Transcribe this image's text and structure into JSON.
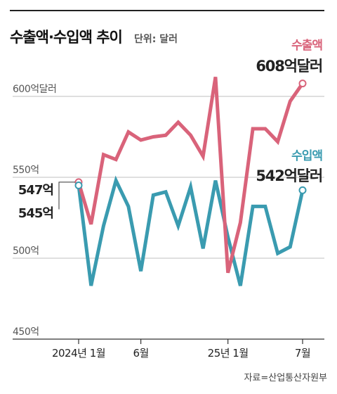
{
  "title": "수출액·수입액 추이",
  "unit": "단위: 달러",
  "source": "자료=산업통산자원부",
  "colors": {
    "exports": "#d9637a",
    "imports": "#3a9bb0",
    "grid": "#bfbfbf",
    "axis": "#333333",
    "text": "#222222"
  },
  "chart_data": {
    "type": "line",
    "title": "수출액·수입액 추이",
    "y_unit": "억달러",
    "ylim": [
      450,
      600
    ],
    "yticks": [
      {
        "value": 600,
        "label": "600억달러"
      },
      {
        "value": 550,
        "label": "550억"
      },
      {
        "value": 500,
        "label": "500억"
      },
      {
        "value": 450,
        "label": "450억"
      }
    ],
    "x": [
      "2024-01",
      "2024-02",
      "2024-03",
      "2024-04",
      "2024-05",
      "2024-06",
      "2024-07",
      "2024-08",
      "2024-09",
      "2024-10",
      "2024-11",
      "2024-12",
      "2025-01",
      "2025-02",
      "2025-03",
      "2025-04",
      "2025-05",
      "2025-06",
      "2025-07"
    ],
    "xtick_labels": [
      {
        "index": 0,
        "label": "2024년 1월"
      },
      {
        "index": 5,
        "label": "6월"
      },
      {
        "index": 12,
        "label": "25년 1월"
      },
      {
        "index": 18,
        "label": "7월"
      }
    ],
    "grid": "horizontal",
    "series": [
      {
        "name": "수출액",
        "color": "#d9637a",
        "values": [
          547,
          521,
          564,
          561,
          578,
          573,
          575,
          576,
          584,
          576,
          563,
          612,
          491,
          522,
          580,
          580,
          572,
          597,
          608
        ],
        "start_label": "547억",
        "end_label": "608억달러"
      },
      {
        "name": "수입액",
        "color": "#3a9bb0",
        "values": [
          545,
          483,
          520,
          548,
          532,
          492,
          539,
          541,
          520,
          544,
          506,
          548,
          513,
          483,
          532,
          532,
          503,
          507,
          542
        ],
        "start_label": "545억",
        "end_label": "542억달러"
      }
    ]
  }
}
